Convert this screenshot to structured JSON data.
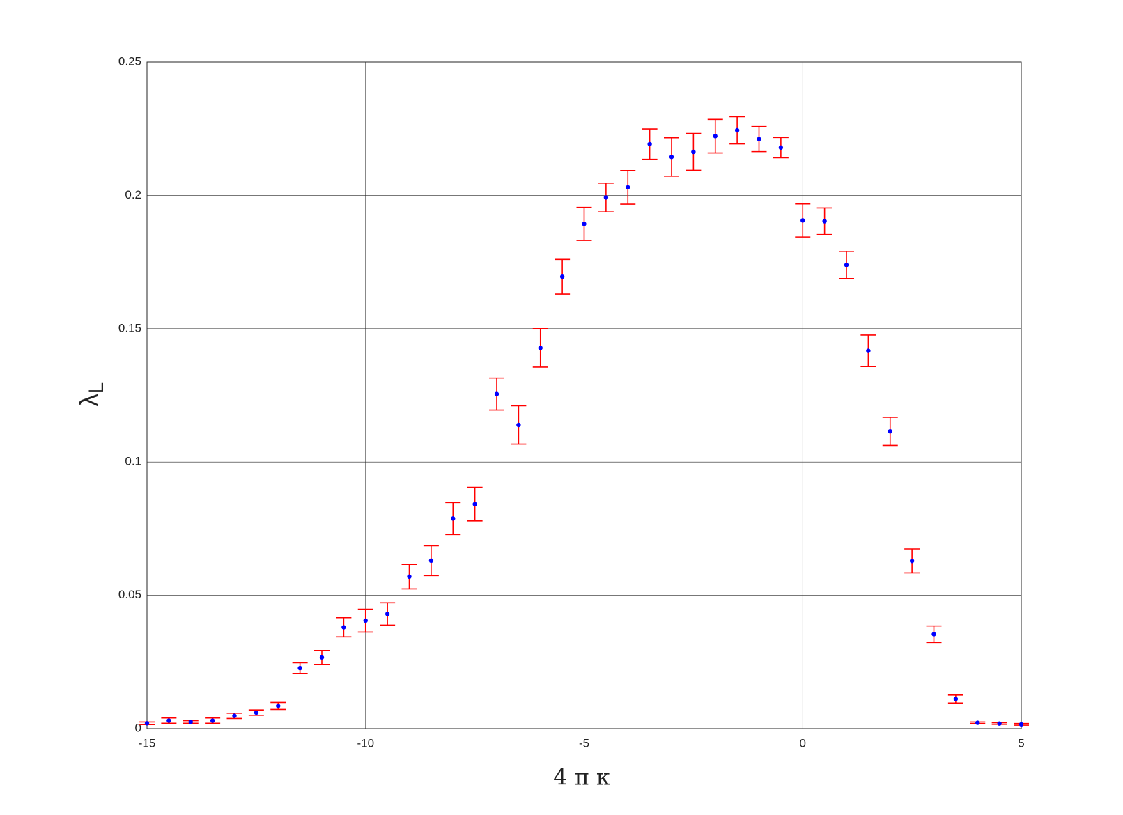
{
  "chart_data": {
    "type": "errorbar",
    "xlabel": "4 π κ",
    "ylabel": {
      "symbol": "λ",
      "subscript": "L"
    },
    "x": [
      -15,
      -14.5,
      -14,
      -13.5,
      -13,
      -12.5,
      -12,
      -11.5,
      -11,
      -10.5,
      -10,
      -9.5,
      -9,
      -8.5,
      -8,
      -7.5,
      -7,
      -6.5,
      -6,
      -5.5,
      -5,
      -4.5,
      -4,
      -3.5,
      -3,
      -2.5,
      -2,
      -1.5,
      -1,
      -0.5,
      0,
      0.5,
      1,
      1.5,
      2,
      2.5,
      3,
      3.5,
      4,
      4.5,
      5
    ],
    "series": [
      {
        "color": "#0000ff",
        "error_color": "#ff0000",
        "values": [
          0.002,
          0.003,
          0.0025,
          0.003,
          0.0048,
          0.006,
          0.0085,
          0.0227,
          0.0267,
          0.038,
          0.0405,
          0.043,
          0.057,
          0.063,
          0.0788,
          0.0842,
          0.1255,
          0.1139,
          0.1428,
          0.1695,
          0.1893,
          0.1992,
          0.203,
          0.2192,
          0.2144,
          0.2163,
          0.2222,
          0.2244,
          0.2211,
          0.2179,
          0.1906,
          0.1903,
          0.1739,
          0.1417,
          0.1115,
          0.0629,
          0.0354,
          0.0111,
          0.0022,
          0.0019,
          0.0016
        ],
        "errors": [
          0.0005,
          0.001,
          0.0005,
          0.001,
          0.001,
          0.001,
          0.0013,
          0.002,
          0.0026,
          0.0036,
          0.0043,
          0.0042,
          0.0046,
          0.0056,
          0.006,
          0.0063,
          0.006,
          0.0072,
          0.0072,
          0.0065,
          0.0062,
          0.0054,
          0.0063,
          0.0057,
          0.0072,
          0.0069,
          0.0063,
          0.0051,
          0.0047,
          0.0038,
          0.0062,
          0.005,
          0.0051,
          0.0059,
          0.0053,
          0.0045,
          0.0031,
          0.0015,
          0.0003,
          0.0003,
          0.0003
        ]
      }
    ],
    "xlim": [
      -15,
      5
    ],
    "xticks": [
      -15,
      -10,
      -5,
      0,
      5
    ],
    "ylim": [
      0,
      0.25
    ],
    "yticks": [
      0,
      0.05,
      0.1,
      0.15,
      0.2,
      0.25
    ],
    "grid": true
  }
}
